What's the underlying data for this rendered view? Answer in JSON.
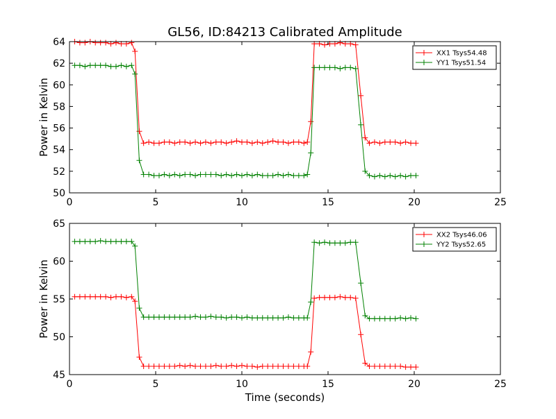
{
  "chart_data": [
    {
      "type": "line",
      "title": "GL56, ID:84213 Calibrated Amplitude",
      "xlabel": "",
      "ylabel": "Power in Kelvin",
      "xlim": [
        0,
        25
      ],
      "ylim": [
        50,
        64
      ],
      "xticks": [
        "0",
        "5",
        "10",
        "15",
        "20",
        "25"
      ],
      "yticks": [
        "50",
        "52",
        "54",
        "56",
        "58",
        "60",
        "62",
        "64"
      ],
      "xtick_values": [
        0,
        5,
        10,
        15,
        20,
        25
      ],
      "ytick_values": [
        50,
        52,
        54,
        56,
        58,
        60,
        62,
        64
      ],
      "legend_position": "top-right",
      "grid": false,
      "marker": "plus",
      "series": [
        {
          "name": "XX1 Tsys54.48",
          "color": "#ff0000",
          "x": [
            0.3,
            0.6,
            0.9,
            1.2,
            1.5,
            1.8,
            2.1,
            2.4,
            2.7,
            3.0,
            3.3,
            3.6,
            3.8,
            4.05,
            4.3,
            4.6,
            4.9,
            5.2,
            5.5,
            5.8,
            6.1,
            6.4,
            6.7,
            7.0,
            7.3,
            7.6,
            7.9,
            8.2,
            8.5,
            8.8,
            9.1,
            9.4,
            9.7,
            10.0,
            10.3,
            10.6,
            10.9,
            11.2,
            11.5,
            11.8,
            12.1,
            12.4,
            12.7,
            13.0,
            13.3,
            13.6,
            13.8,
            14.0,
            14.2,
            14.5,
            14.8,
            15.1,
            15.4,
            15.7,
            16.0,
            16.3,
            16.6,
            16.9,
            17.15,
            17.4,
            17.7,
            18.0,
            18.3,
            18.6,
            18.9,
            19.2,
            19.5,
            19.8,
            20.1
          ],
          "y": [
            64.0,
            63.9,
            63.9,
            64.0,
            63.9,
            63.9,
            63.9,
            63.8,
            63.9,
            63.8,
            63.8,
            63.9,
            63.1,
            55.7,
            54.6,
            54.7,
            54.6,
            54.6,
            54.7,
            54.7,
            54.6,
            54.7,
            54.7,
            54.6,
            54.7,
            54.6,
            54.7,
            54.6,
            54.7,
            54.7,
            54.6,
            54.7,
            54.8,
            54.7,
            54.7,
            54.6,
            54.7,
            54.6,
            54.7,
            54.8,
            54.7,
            54.7,
            54.6,
            54.7,
            54.7,
            54.6,
            54.7,
            56.6,
            63.8,
            63.8,
            63.7,
            63.8,
            63.8,
            63.9,
            63.8,
            63.8,
            63.7,
            59.0,
            55.1,
            54.6,
            54.7,
            54.6,
            54.7,
            54.7,
            54.7,
            54.6,
            54.7,
            54.6,
            54.6
          ]
        },
        {
          "name": "YY1 Tsys51.54",
          "color": "#008000",
          "x": [
            0.3,
            0.6,
            0.9,
            1.2,
            1.5,
            1.8,
            2.1,
            2.4,
            2.7,
            3.0,
            3.3,
            3.6,
            3.8,
            4.05,
            4.3,
            4.6,
            4.9,
            5.2,
            5.5,
            5.8,
            6.1,
            6.4,
            6.7,
            7.0,
            7.3,
            7.6,
            7.9,
            8.2,
            8.5,
            8.8,
            9.1,
            9.4,
            9.7,
            10.0,
            10.3,
            10.6,
            10.9,
            11.2,
            11.5,
            11.8,
            12.1,
            12.4,
            12.7,
            13.0,
            13.3,
            13.6,
            13.8,
            14.0,
            14.2,
            14.5,
            14.8,
            15.1,
            15.4,
            15.7,
            16.0,
            16.3,
            16.6,
            16.9,
            17.15,
            17.4,
            17.7,
            18.0,
            18.3,
            18.6,
            18.9,
            19.2,
            19.5,
            19.8,
            20.1
          ],
          "y": [
            61.8,
            61.8,
            61.7,
            61.8,
            61.8,
            61.8,
            61.8,
            61.7,
            61.7,
            61.8,
            61.7,
            61.8,
            61.0,
            53.0,
            51.7,
            51.7,
            51.6,
            51.6,
            51.7,
            51.6,
            51.7,
            51.6,
            51.7,
            51.7,
            51.6,
            51.7,
            51.7,
            51.7,
            51.7,
            51.6,
            51.7,
            51.6,
            51.7,
            51.6,
            51.7,
            51.6,
            51.7,
            51.6,
            51.6,
            51.6,
            51.7,
            51.6,
            51.7,
            51.6,
            51.6,
            51.6,
            51.7,
            53.7,
            61.6,
            61.6,
            61.6,
            61.6,
            61.6,
            61.5,
            61.6,
            61.6,
            61.5,
            56.3,
            52.0,
            51.6,
            51.5,
            51.6,
            51.5,
            51.6,
            51.5,
            51.6,
            51.5,
            51.6,
            51.6
          ]
        }
      ]
    },
    {
      "type": "line",
      "title": "",
      "xlabel": "Time (seconds)",
      "ylabel": "Power in Kelvin",
      "xlim": [
        0,
        25
      ],
      "ylim": [
        45,
        65
      ],
      "xticks": [
        "0",
        "5",
        "10",
        "15",
        "20",
        "25"
      ],
      "yticks": [
        "45",
        "50",
        "55",
        "60",
        "65"
      ],
      "xtick_values": [
        0,
        5,
        10,
        15,
        20,
        25
      ],
      "ytick_values": [
        45,
        50,
        55,
        60,
        65
      ],
      "legend_position": "top-right",
      "grid": false,
      "marker": "plus",
      "series": [
        {
          "name": "XX2 Tsys46.06",
          "color": "#ff0000",
          "x": [
            0.3,
            0.6,
            0.9,
            1.2,
            1.5,
            1.8,
            2.1,
            2.4,
            2.7,
            3.0,
            3.3,
            3.6,
            3.8,
            4.05,
            4.3,
            4.6,
            4.9,
            5.2,
            5.5,
            5.8,
            6.1,
            6.4,
            6.7,
            7.0,
            7.3,
            7.6,
            7.9,
            8.2,
            8.5,
            8.8,
            9.1,
            9.4,
            9.7,
            10.0,
            10.3,
            10.6,
            10.9,
            11.2,
            11.5,
            11.8,
            12.1,
            12.4,
            12.7,
            13.0,
            13.3,
            13.6,
            13.8,
            14.0,
            14.2,
            14.5,
            14.8,
            15.1,
            15.4,
            15.7,
            16.0,
            16.3,
            16.6,
            16.9,
            17.15,
            17.4,
            17.7,
            18.0,
            18.3,
            18.6,
            18.9,
            19.2,
            19.5,
            19.8,
            20.1
          ],
          "y": [
            55.3,
            55.3,
            55.3,
            55.3,
            55.3,
            55.3,
            55.3,
            55.2,
            55.3,
            55.3,
            55.2,
            55.3,
            54.7,
            47.3,
            46.1,
            46.1,
            46.1,
            46.1,
            46.1,
            46.1,
            46.1,
            46.2,
            46.1,
            46.2,
            46.1,
            46.1,
            46.1,
            46.1,
            46.2,
            46.1,
            46.1,
            46.2,
            46.1,
            46.2,
            46.1,
            46.1,
            46.0,
            46.1,
            46.1,
            46.1,
            46.1,
            46.1,
            46.1,
            46.1,
            46.1,
            46.1,
            46.1,
            48.0,
            55.1,
            55.2,
            55.2,
            55.2,
            55.2,
            55.3,
            55.2,
            55.2,
            55.1,
            50.3,
            46.5,
            46.1,
            46.1,
            46.1,
            46.1,
            46.1,
            46.1,
            46.1,
            46.0,
            46.0,
            46.0
          ]
        },
        {
          "name": "YY2 Tsys52.65",
          "color": "#008000",
          "x": [
            0.3,
            0.6,
            0.9,
            1.2,
            1.5,
            1.8,
            2.1,
            2.4,
            2.7,
            3.0,
            3.3,
            3.6,
            3.8,
            4.05,
            4.3,
            4.6,
            4.9,
            5.2,
            5.5,
            5.8,
            6.1,
            6.4,
            6.7,
            7.0,
            7.3,
            7.6,
            7.9,
            8.2,
            8.5,
            8.8,
            9.1,
            9.4,
            9.7,
            10.0,
            10.3,
            10.6,
            10.9,
            11.2,
            11.5,
            11.8,
            12.1,
            12.4,
            12.7,
            13.0,
            13.3,
            13.6,
            13.8,
            14.0,
            14.2,
            14.5,
            14.8,
            15.1,
            15.4,
            15.7,
            16.0,
            16.3,
            16.6,
            16.9,
            17.15,
            17.4,
            17.7,
            18.0,
            18.3,
            18.6,
            18.9,
            19.2,
            19.5,
            19.8,
            20.1
          ],
          "y": [
            62.6,
            62.6,
            62.6,
            62.6,
            62.6,
            62.7,
            62.6,
            62.6,
            62.6,
            62.6,
            62.6,
            62.6,
            62.0,
            53.8,
            52.6,
            52.6,
            52.6,
            52.6,
            52.6,
            52.6,
            52.6,
            52.6,
            52.6,
            52.6,
            52.7,
            52.6,
            52.6,
            52.7,
            52.6,
            52.6,
            52.5,
            52.6,
            52.6,
            52.5,
            52.6,
            52.5,
            52.5,
            52.5,
            52.5,
            52.5,
            52.5,
            52.5,
            52.6,
            52.5,
            52.5,
            52.5,
            52.5,
            54.6,
            62.5,
            62.4,
            62.5,
            62.4,
            62.4,
            62.4,
            62.4,
            62.5,
            62.5,
            57.1,
            52.8,
            52.4,
            52.4,
            52.4,
            52.4,
            52.4,
            52.4,
            52.5,
            52.4,
            52.5,
            52.4
          ]
        }
      ]
    }
  ]
}
